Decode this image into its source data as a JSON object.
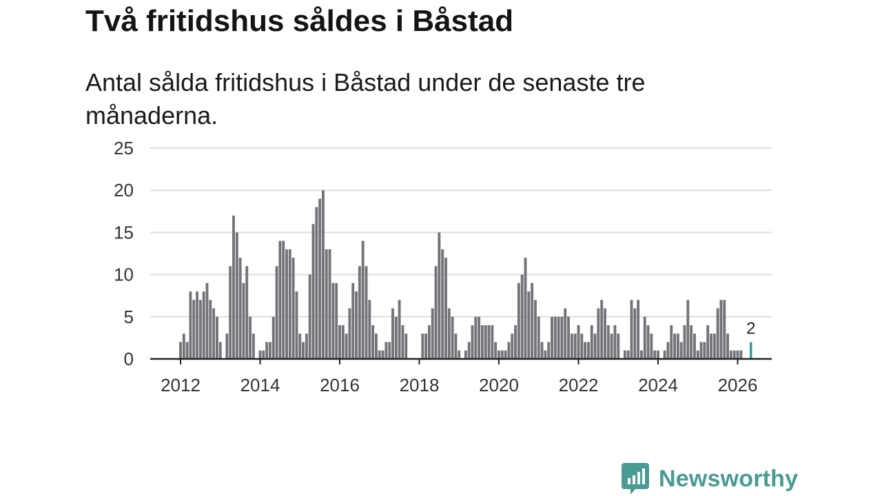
{
  "title": "Två fritidshus såldes i Båstad",
  "subtitle": "Antal sålda fritidshus i Båstad under de senaste tre månaderna.",
  "brand": {
    "name": "Newsworthy",
    "logo_icon": "chart-speech-bubble-icon",
    "color": "#4a9b93"
  },
  "chart_data": {
    "type": "bar",
    "title": "",
    "xlabel": "",
    "ylabel": "",
    "ylim": [
      0,
      25
    ],
    "y_ticks": [
      0,
      5,
      10,
      15,
      20,
      25
    ],
    "x_ticks": [
      "2012",
      "2014",
      "2016",
      "2018",
      "2020",
      "2022",
      "2024",
      "2026"
    ],
    "grid": true,
    "x_start": "2012-01",
    "values": [
      2,
      3,
      2,
      8,
      7,
      8,
      7,
      8,
      9,
      7,
      6,
      5,
      2,
      0,
      3,
      11,
      17,
      15,
      12,
      9,
      11,
      5,
      3,
      0,
      1,
      1,
      2,
      2,
      5,
      11,
      14,
      14,
      13,
      13,
      12,
      8,
      3,
      2,
      3,
      10,
      16,
      18,
      19,
      20,
      13,
      13,
      9,
      9,
      4,
      4,
      3,
      6,
      9,
      8,
      11,
      14,
      11,
      7,
      4,
      3,
      1,
      1,
      2,
      2,
      6,
      5,
      7,
      4,
      3,
      0,
      0,
      0,
      0,
      3,
      3,
      4,
      6,
      11,
      15,
      13,
      12,
      6,
      5,
      3,
      1,
      0,
      1,
      2,
      4,
      5,
      5,
      4,
      4,
      4,
      4,
      2,
      1,
      1,
      1,
      2,
      3,
      4,
      9,
      10,
      12,
      8,
      9,
      7,
      5,
      2,
      1,
      2,
      5,
      5,
      5,
      5,
      6,
      5,
      3,
      3,
      4,
      3,
      2,
      2,
      4,
      3,
      6,
      7,
      6,
      4,
      3,
      4,
      3,
      0,
      1,
      1,
      7,
      6,
      7,
      1,
      5,
      4,
      3,
      1,
      1,
      0,
      1,
      2,
      4,
      3,
      3,
      2,
      4,
      7,
      4,
      3,
      1,
      2,
      2,
      4,
      3,
      3,
      6,
      7,
      7,
      3,
      1,
      1,
      1,
      1,
      0,
      0,
      2
    ],
    "colors": {
      "bar": "#74737a",
      "highlight": "#2a9d96",
      "grid": "#dddddd",
      "axis": "#222222"
    },
    "highlight_last": true,
    "annotation": {
      "label": "2",
      "value": 2
    }
  }
}
